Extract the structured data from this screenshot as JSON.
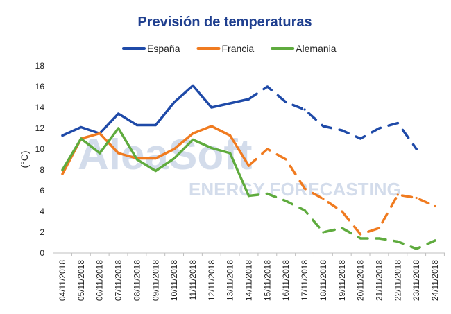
{
  "chart_data": {
    "type": "line",
    "title": "Previsión de temperaturas",
    "ylabel": "(°C)",
    "xlabel": "",
    "ylim": [
      0,
      18
    ],
    "yticks": [
      0,
      2,
      4,
      6,
      8,
      10,
      12,
      14,
      16,
      18
    ],
    "grid": false,
    "legend_position": "top",
    "watermark": {
      "main": "AleaSoft",
      "sub": "ENERGY FORECASTING"
    },
    "categories": [
      "04/11/2018",
      "05/11/2018",
      "06/11/2018",
      "07/11/2018",
      "08/11/2018",
      "09/11/2018",
      "10/11/2018",
      "11/11/2018",
      "12/11/2018",
      "13/11/2018",
      "14/11/2018",
      "15/11/2018",
      "16/11/2018",
      "17/11/2018",
      "18/11/2018",
      "19/11/2018",
      "20/11/2018",
      "21/11/2018",
      "22/11/2018",
      "23/11/2018",
      "24/11/2018"
    ],
    "forecast_start_index": 10,
    "series": [
      {
        "name": "España",
        "color": "#1f4aa8",
        "values": [
          11.3,
          12.1,
          11.5,
          13.4,
          12.3,
          12.3,
          14.5,
          16.1,
          14.0,
          14.4,
          14.8,
          16.0,
          14.5,
          13.8,
          12.2,
          11.8,
          11.0,
          12.0,
          12.5,
          10.0,
          null
        ]
      },
      {
        "name": "Francia",
        "color": "#f07b20",
        "values": [
          7.6,
          11.0,
          11.5,
          9.6,
          9.1,
          9.1,
          10.0,
          11.5,
          12.2,
          11.3,
          8.4,
          10.0,
          9.0,
          6.2,
          5.2,
          4.0,
          1.8,
          2.4,
          5.6,
          5.3,
          4.5
        ]
      },
      {
        "name": "Alemania",
        "color": "#5fab3e",
        "values": [
          8.0,
          11.0,
          9.6,
          12.0,
          9.0,
          7.9,
          9.1,
          10.9,
          10.1,
          9.6,
          5.5,
          5.7,
          5.0,
          4.1,
          2.0,
          2.4,
          1.4,
          1.4,
          1.1,
          0.4,
          1.2
        ]
      }
    ]
  }
}
